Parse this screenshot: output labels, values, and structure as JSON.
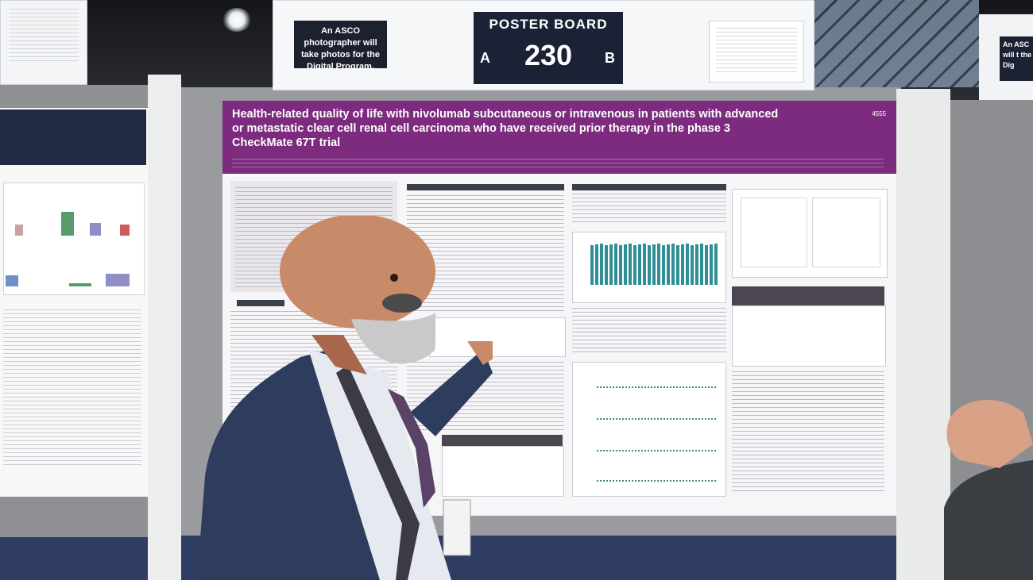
{
  "scene": {
    "header_sign": {
      "photo_notice": "An ASCO photographer will take photos for the Digital Program.",
      "board_title": "POSTER BOARD",
      "board_number": "230",
      "side_left": "A",
      "side_right": "B"
    },
    "right_sign_partial": "An ASC will t the Dig",
    "poster": {
      "title": "Health-related quality of life with nivolumab subcutaneous or intravenous in patients with advanced or metastatic clear cell renal cell carcinoma who have received prior therapy in the phase 3 CheckMate 67T trial",
      "header_color": "#7d2b7f"
    },
    "people": [
      "presenter-pointing-at-poster",
      "visitor-right-edge"
    ]
  }
}
